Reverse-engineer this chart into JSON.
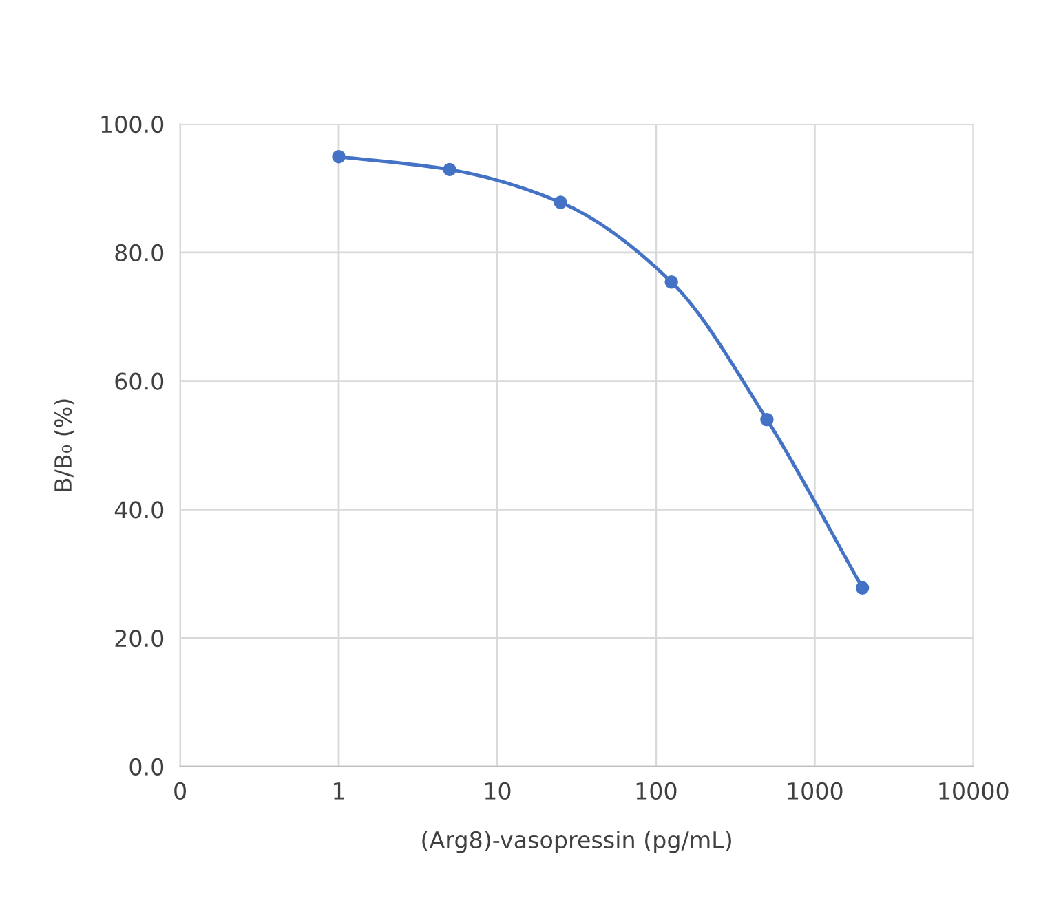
{
  "chart_data": {
    "type": "line",
    "xlabel": "(Arg8)-vasopressin (pg/mL)",
    "ylabel": "B/B₀ (%)",
    "x": [
      1,
      5,
      25,
      125,
      500,
      2000
    ],
    "series": [
      {
        "color": "#4472c4",
        "values": [
          94.9,
          92.9,
          87.8,
          75.4,
          54.0,
          27.8
        ]
      }
    ],
    "log": "x",
    "xlim": [
      0.1,
      10000
    ],
    "xticks": [
      {
        "value": 0.1,
        "label": "0"
      },
      1,
      10,
      100,
      1000,
      10000
    ],
    "ylim": [
      0,
      100
    ],
    "yticks": [
      {
        "value": 0,
        "label": "0.0"
      },
      {
        "value": 20,
        "label": "20.0"
      },
      {
        "value": 40,
        "label": "40.0"
      },
      {
        "value": 60,
        "label": "60.0"
      },
      {
        "value": 80,
        "label": "80.0"
      },
      {
        "value": 100,
        "label": "100.0"
      }
    ],
    "grid": true,
    "marker": "circle",
    "line_style": "solid"
  }
}
